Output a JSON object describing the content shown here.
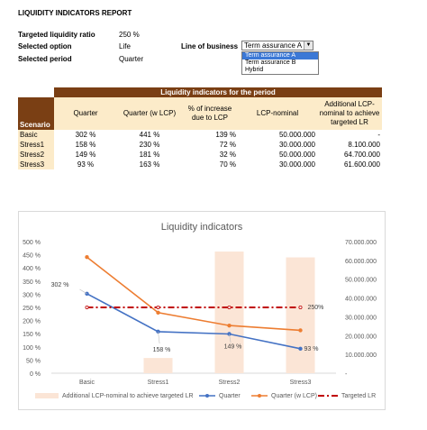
{
  "report": {
    "title": "LIQUIDITY INDICATORS REPORT",
    "params": [
      {
        "label": "Targeted liquidity ratio",
        "value": "250 %"
      },
      {
        "label": "Selected option",
        "value": "Life"
      },
      {
        "label": "Selected period",
        "value": "Quarter"
      }
    ],
    "line_of_business": {
      "label": "Line of business",
      "selected": "Term assurance A",
      "options": [
        "Term assurance A",
        "Term assurance B",
        "Hybrid"
      ]
    }
  },
  "table": {
    "band_title": "Liquidity indicators for the period",
    "scenario_header": "Scenario",
    "columns": [
      "Quarter",
      "Quarter (w LCP)",
      "% of increase due to LCP",
      "LCP-nominal",
      "Additional LCP-nominal to achieve targeted LR"
    ],
    "rows": [
      {
        "scenario": "Basic",
        "cells": [
          "302 %",
          "441 %",
          "139 %",
          "50.000.000",
          "-"
        ]
      },
      {
        "scenario": "Stress1",
        "cells": [
          "158 %",
          "230 %",
          "72 %",
          "30.000.000",
          "8.100.000"
        ]
      },
      {
        "scenario": "Stress2",
        "cells": [
          "149 %",
          "181 %",
          "32 %",
          "50.000.000",
          "64.700.000"
        ]
      },
      {
        "scenario": "Stress3",
        "cells": [
          "93 %",
          "163 %",
          "70 %",
          "30.000.000",
          "61.600.000"
        ]
      }
    ]
  },
  "chart_data": {
    "type": "line",
    "title": "Liquidity indicators",
    "categories": [
      "Basic",
      "Stress1",
      "Stress2",
      "Stress3"
    ],
    "y_left": {
      "range": [
        0,
        500
      ],
      "ticks": [
        "0 %",
        "50 %",
        "100 %",
        "150 %",
        "200 %",
        "250 %",
        "300 %",
        "350 %",
        "400 %",
        "450 %",
        "500 %"
      ]
    },
    "y_right": {
      "range": [
        0,
        70000000
      ],
      "ticks": [
        "-",
        "10.000.000",
        "20.000.000",
        "30.000.000",
        "40.000.000",
        "50.000.000",
        "60.000.000",
        "70.000.000"
      ]
    },
    "series": [
      {
        "name": "Additional LCP-nominal to achieve targeted LR",
        "kind": "bar",
        "axis": "right",
        "color": "#fbe5d6",
        "values": [
          0,
          8100000,
          64700000,
          61600000
        ]
      },
      {
        "name": "Quarter",
        "kind": "line",
        "axis": "left",
        "color": "#4472c4",
        "values": [
          302,
          158,
          149,
          93
        ]
      },
      {
        "name": "Quarter (w LCP)",
        "kind": "line",
        "axis": "left",
        "color": "#ed7d31",
        "values": [
          441,
          230,
          181,
          163
        ]
      },
      {
        "name": "Targeted LR",
        "kind": "dashdot",
        "axis": "left",
        "color": "#c00000",
        "values": [
          250,
          250,
          250,
          250
        ]
      }
    ],
    "data_labels": [
      {
        "series": "Quarter",
        "index": 0,
        "text": "302 %"
      },
      {
        "series": "Quarter",
        "index": 1,
        "text": "158 %"
      },
      {
        "series": "Quarter",
        "index": 2,
        "text": "149 %"
      },
      {
        "series": "Quarter",
        "index": 3,
        "text": "93 %"
      },
      {
        "series": "Targeted LR",
        "index": 3,
        "text": "250%"
      }
    ],
    "legend_position": "bottom"
  }
}
